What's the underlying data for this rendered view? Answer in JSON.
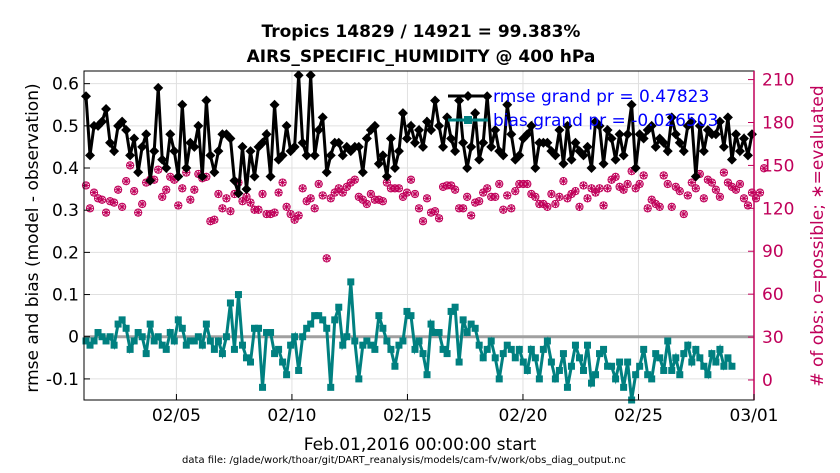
{
  "chart_data": {
    "type": "line",
    "title_line1": "Tropics 14829 / 14921 = 99.383%",
    "title_line2": "AIRS_SPECIFIC_HUMIDITY @ 400 hPa",
    "ylabel_left": "rmse and bias (model - observation)",
    "ylabel_right": "# of obs: o=possible; ∗=evaluated",
    "xlabel": "Feb.01,2016 00:00:00 start",
    "footer": "data file: /glade/work/thoar/git/DART_reanalysis/models/cam-fv/work/obs_diag_output.nc",
    "x_range_days": [
      0,
      29
    ],
    "ylim_left": [
      -0.15,
      0.63
    ],
    "ylim_right": [
      -14,
      216
    ],
    "yticks_left": [
      "-0.1",
      "0",
      "0.1",
      "0.2",
      "0.3",
      "0.4",
      "0.5",
      "0.6"
    ],
    "yticks_left_values": [
      -0.1,
      0,
      0.1,
      0.2,
      0.3,
      0.4,
      0.5,
      0.6
    ],
    "yticks_right": [
      "0",
      "30",
      "60",
      "90",
      "120",
      "150",
      "180",
      "210"
    ],
    "yticks_right_values": [
      0,
      30,
      60,
      90,
      120,
      150,
      180,
      210
    ],
    "xticks": [
      {
        "label": "02/05",
        "day": 4
      },
      {
        "label": "02/10",
        "day": 9
      },
      {
        "label": "02/15",
        "day": 14
      },
      {
        "label": "02/20",
        "day": 19
      },
      {
        "label": "02/25",
        "day": 24
      },
      {
        "label": "03/01",
        "day": 29
      }
    ],
    "legend": [
      {
        "label": "rmse grand pr = 0.47823",
        "color": "#000000"
      },
      {
        "label": "bias grand pr = -0.026503",
        "color": "#008080"
      }
    ],
    "colors": {
      "rmse": "#000000",
      "bias": "#008080",
      "obs": "#c0005a",
      "zero_line": "#a0a0a0",
      "grid": "#e0e0e0"
    },
    "series": [
      {
        "name": "rmse",
        "axis": "left",
        "values": [
          0.57,
          0.43,
          0.5,
          0.5,
          0.51,
          0.54,
          0.46,
          0.44,
          0.5,
          0.51,
          0.49,
          0.43,
          0.47,
          0.39,
          0.45,
          0.48,
          0.37,
          0.44,
          0.59,
          0.42,
          0.4,
          0.48,
          0.44,
          0.38,
          0.55,
          0.4,
          0.46,
          0.45,
          0.5,
          0.38,
          0.56,
          0.43,
          0.39,
          0.44,
          0.48,
          0.48,
          0.47,
          0.37,
          0.34,
          0.45,
          0.35,
          0.44,
          0.38,
          0.45,
          0.46,
          0.48,
          0.38,
          0.55,
          0.42,
          0.43,
          0.5,
          0.44,
          0.45,
          0.62,
          0.46,
          0.43,
          0.62,
          0.43,
          0.49,
          0.52,
          0.39,
          0.43,
          0.46,
          0.46,
          0.43,
          0.45,
          0.44,
          0.45,
          0.45,
          0.39,
          0.47,
          0.49,
          0.5,
          0.41,
          0.43,
          0.38,
          0.47,
          0.4,
          0.44,
          0.53,
          0.47,
          0.5,
          0.46,
          0.49,
          0.45,
          0.51,
          0.49,
          0.56,
          0.5,
          0.45,
          0.52,
          0.47,
          0.44,
          0.56,
          0.46,
          0.4,
          0.45,
          0.53,
          0.42,
          0.46,
          0.57,
          0.45,
          0.49,
          0.44,
          0.43,
          0.55,
          0.48,
          0.42,
          0.43,
          0.47,
          0.48,
          0.5,
          0.4,
          0.46,
          0.46,
          0.46,
          0.44,
          0.43,
          0.49,
          0.41,
          0.5,
          0.42,
          0.46,
          0.44,
          0.43,
          0.45,
          0.4,
          0.51,
          0.5,
          0.41,
          0.49,
          0.47,
          0.42,
          0.48,
          0.43,
          0.48,
          0.55,
          0.4,
          0.48,
          0.47,
          0.49,
          0.5,
          0.45,
          0.47,
          0.46,
          0.44,
          0.52,
          0.48,
          0.46,
          0.44,
          0.5,
          0.51,
          0.38,
          0.5,
          0.44,
          0.49,
          0.48,
          0.48,
          0.51,
          0.45,
          0.52,
          0.42,
          0.48,
          0.44,
          0.47,
          0.43,
          0.48
        ]
      },
      {
        "name": "bias",
        "axis": "left",
        "values": [
          -0.01,
          -0.02,
          -0.01,
          0.01,
          0.0,
          -0.01,
          0.0,
          -0.02,
          0.03,
          0.04,
          0.02,
          -0.03,
          -0.01,
          0.01,
          0.0,
          -0.04,
          0.03,
          -0.01,
          0.0,
          -0.02,
          -0.03,
          0.01,
          -0.01,
          0.04,
          0.02,
          -0.02,
          -0.01,
          -0.01,
          0.0,
          -0.02,
          0.03,
          -0.01,
          -0.03,
          -0.01,
          -0.04,
          0.0,
          0.08,
          -0.03,
          0.1,
          -0.02,
          -0.05,
          -0.06,
          0.02,
          0.02,
          -0.12,
          0.01,
          0.01,
          -0.04,
          -0.03,
          -0.06,
          -0.09,
          -0.02,
          0.0,
          -0.08,
          0.0,
          0.02,
          0.03,
          0.05,
          0.05,
          0.04,
          0.02,
          -0.12,
          0.04,
          0.07,
          -0.02,
          0.0,
          0.13,
          -0.01,
          -0.1,
          -0.02,
          -0.01,
          -0.02,
          -0.03,
          0.05,
          0.02,
          -0.01,
          -0.03,
          -0.07,
          -0.02,
          -0.01,
          0.06,
          0.05,
          -0.03,
          -0.01,
          -0.04,
          -0.09,
          0.03,
          0.01,
          0.01,
          -0.03,
          -0.04,
          0.06,
          0.07,
          -0.06,
          0.04,
          0.01,
          0.03,
          0.02,
          -0.02,
          -0.05,
          -0.03,
          -0.01,
          -0.05,
          -0.1,
          -0.04,
          -0.02,
          -0.03,
          -0.05,
          -0.03,
          -0.06,
          -0.08,
          -0.03,
          -0.05,
          -0.1,
          -0.03,
          -0.01,
          -0.06,
          -0.1,
          -0.08,
          -0.04,
          -0.12,
          -0.07,
          -0.02,
          -0.05,
          -0.08,
          -0.02,
          -0.11,
          -0.09,
          -0.04,
          -0.03,
          -0.07,
          -0.07,
          -0.1,
          -0.06,
          -0.12,
          -0.06,
          -0.15,
          -0.09,
          -0.07,
          -0.03,
          -0.09,
          -0.1,
          -0.04,
          -0.05,
          -0.08,
          -0.01,
          -0.08,
          -0.05,
          -0.09,
          -0.04,
          -0.02,
          -0.06,
          -0.03,
          -0.05,
          -0.07,
          -0.09,
          -0.04,
          -0.06,
          -0.03,
          -0.07,
          -0.05,
          -0.07
        ]
      },
      {
        "name": "obs_possible",
        "axis": "right",
        "marker": "o",
        "values": [
          136,
          120,
          131,
          127,
          126,
          117,
          125,
          124,
          133,
          121,
          139,
          150,
          132,
          117,
          123,
          138,
          140,
          140,
          147,
          128,
          133,
          142,
          140,
          122,
          134,
          145,
          126,
          133,
          144,
          141,
          142,
          111,
          112,
          130,
          120,
          127,
          118,
          130,
          138,
          125,
          128,
          124,
          119,
          119,
          130,
          116,
          116,
          117,
          131,
          138,
          121,
          116,
          112,
          115,
          134,
          125,
          127,
          120,
          137,
          129,
          85,
          127,
          131,
          134,
          131,
          135,
          138,
          140,
          128,
          126,
          123,
          130,
          126,
          126,
          125,
          138,
          134,
          134,
          134,
          128,
          131,
          140,
          130,
          120,
          111,
          127,
          117,
          118,
          113,
          135,
          136,
          136,
          133,
          120,
          120,
          128,
          115,
          124,
          125,
          131,
          134,
          128,
          128,
          137,
          119,
          129,
          120,
          132,
          137,
          137,
          137,
          130,
          128,
          123,
          123,
          121,
          130,
          123,
          128,
          139,
          127,
          130,
          132,
          121,
          136,
          127,
          134,
          131,
          134,
          122,
          134,
          140,
          142,
          135,
          133,
          137,
          146,
          134,
          137,
          143,
          120,
          126,
          123,
          121,
          143,
          137,
          121,
          135,
          132,
          116,
          129,
          138,
          134,
          144,
          127,
          140,
          138,
          133,
          128,
          145,
          138,
          135,
          133,
          137,
          127,
          122,
          131,
          127,
          131,
          148
        ]
      },
      {
        "name": "obs_evaluated",
        "axis": "right",
        "marker": "*",
        "values": [
          136,
          120,
          131,
          127,
          126,
          117,
          125,
          124,
          133,
          121,
          139,
          150,
          132,
          117,
          123,
          138,
          140,
          140,
          147,
          128,
          133,
          142,
          140,
          122,
          134,
          145,
          126,
          133,
          144,
          141,
          142,
          111,
          112,
          130,
          120,
          127,
          118,
          130,
          138,
          125,
          128,
          124,
          119,
          119,
          130,
          116,
          116,
          117,
          131,
          138,
          121,
          116,
          112,
          115,
          134,
          125,
          127,
          120,
          137,
          129,
          85,
          127,
          131,
          134,
          131,
          135,
          138,
          140,
          128,
          126,
          123,
          130,
          126,
          126,
          125,
          138,
          134,
          134,
          134,
          128,
          131,
          140,
          130,
          120,
          111,
          127,
          117,
          118,
          113,
          135,
          136,
          136,
          133,
          120,
          120,
          128,
          115,
          124,
          125,
          131,
          134,
          128,
          128,
          137,
          119,
          129,
          120,
          132,
          137,
          137,
          137,
          130,
          128,
          123,
          123,
          121,
          130,
          123,
          128,
          139,
          127,
          130,
          132,
          121,
          136,
          127,
          134,
          131,
          134,
          122,
          134,
          140,
          142,
          135,
          133,
          137,
          146,
          134,
          137,
          143,
          120,
          126,
          123,
          121,
          143,
          137,
          121,
          135,
          132,
          116,
          129,
          138,
          134,
          144,
          127,
          140,
          138,
          133,
          128,
          145,
          138,
          135,
          133,
          137,
          127,
          122,
          131,
          127,
          131,
          148
        ]
      }
    ]
  }
}
